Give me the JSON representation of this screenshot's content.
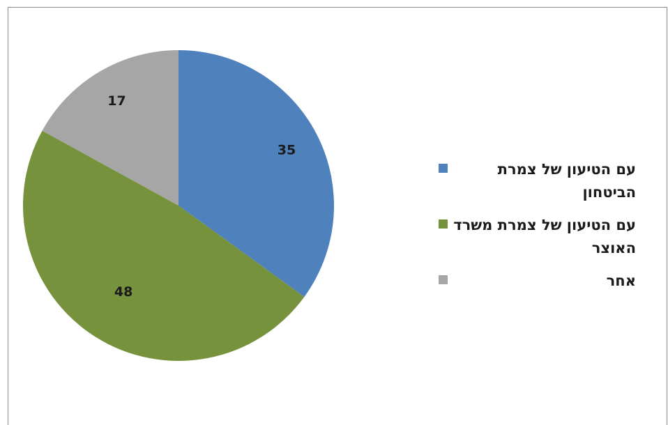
{
  "chart_data": {
    "type": "pie",
    "title": "",
    "categories": [
      "עם הטיעון של צמרת הביטחון",
      "עם הטיעון של צמרת משרד האוצר",
      "אחר"
    ],
    "values": [
      35,
      48,
      17
    ],
    "data_labels": [
      "35",
      "48",
      "17"
    ],
    "colors": [
      "#4f81bd",
      "#76923c",
      "#a6a6a6"
    ],
    "start_angle_deg": 0,
    "direction": "clockwise",
    "legend_position": "right"
  }
}
